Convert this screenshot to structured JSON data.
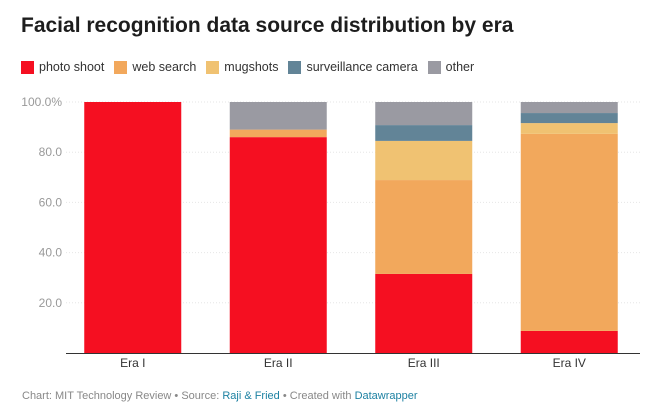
{
  "chart_data": {
    "type": "bar",
    "stacked": true,
    "title": "Facial recognition data source distribution by era",
    "categories": [
      "Era I",
      "Era II",
      "Era III",
      "Era IV"
    ],
    "series": [
      {
        "name": "photo shoot",
        "color": "#f50f21",
        "values": [
          100,
          86,
          31.5,
          8.8
        ]
      },
      {
        "name": "web search",
        "color": "#f2a85c",
        "values": [
          0,
          3,
          37.4,
          78.5
        ]
      },
      {
        "name": "mugshots",
        "color": "#f0c272",
        "values": [
          0,
          0,
          15.6,
          4.3
        ]
      },
      {
        "name": "surveillance camera",
        "color": "#628497",
        "values": [
          0,
          0,
          6.3,
          4.0
        ]
      },
      {
        "name": "other",
        "color": "#9a9aa2",
        "values": [
          0,
          11,
          9.2,
          4.4
        ]
      }
    ],
    "yticks": [
      "20.0",
      "40.0",
      "60.0",
      "80.0",
      "100.0%"
    ],
    "ytick_values": [
      20,
      40,
      60,
      80,
      100
    ],
    "ylim": [
      0,
      100
    ],
    "xlabel": "",
    "ylabel": "",
    "legend": "top-left"
  },
  "footer": {
    "prefix": "Chart: MIT Technology Review • Source: ",
    "source": "Raji & Fried",
    "middle": " • Created with ",
    "tool": "Datawrapper"
  }
}
